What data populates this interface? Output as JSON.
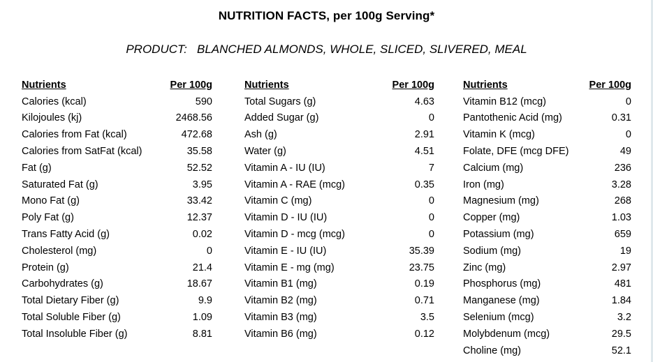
{
  "title": "NUTRITION FACTS, per 100g Serving*",
  "product_label": "PRODUCT:",
  "product_name": "BLANCHED ALMONDS, WHOLE, SLICED, SLIVERED, MEAL",
  "header": {
    "nutrients": "Nutrients",
    "per": "Per 100g"
  },
  "columns": [
    {
      "rows": [
        [
          "Calories (kcal)",
          "590"
        ],
        [
          "Kilojoules (kj)",
          "2468.56"
        ],
        [
          "Calories from Fat (kcal)",
          "472.68"
        ],
        [
          "Calories from SatFat (kcal)",
          "35.58"
        ],
        [
          "Fat (g)",
          "52.52"
        ],
        [
          "Saturated Fat (g)",
          "3.95"
        ],
        [
          "Mono Fat (g)",
          "33.42"
        ],
        [
          "Poly Fat (g)",
          "12.37"
        ],
        [
          "Trans Fatty Acid (g)",
          "0.02"
        ],
        [
          "Cholesterol (mg)",
          "0"
        ],
        [
          "Protein (g)",
          "21.4"
        ],
        [
          "Carbohydrates (g)",
          "18.67"
        ],
        [
          "Total Dietary Fiber (g)",
          "9.9"
        ],
        [
          "Total Soluble Fiber (g)",
          "1.09"
        ],
        [
          "Total Insoluble Fiber (g)",
          "8.81"
        ]
      ]
    },
    {
      "rows": [
        [
          "Total Sugars (g)",
          "4.63"
        ],
        [
          "Added Sugar (g)",
          "0"
        ],
        [
          "Ash (g)",
          "2.91"
        ],
        [
          "Water (g)",
          "4.51"
        ],
        [
          "Vitamin A - IU (IU)",
          "7"
        ],
        [
          "Vitamin A - RAE (mcg)",
          "0.35"
        ],
        [
          "Vitamin C (mg)",
          "0"
        ],
        [
          "Vitamin D - IU (IU)",
          "0"
        ],
        [
          "Vitamin D - mcg (mcg)",
          "0"
        ],
        [
          "Vitamin E - IU (IU)",
          "35.39"
        ],
        [
          "Vitamin E - mg (mg)",
          "23.75"
        ],
        [
          "Vitamin B1 (mg)",
          "0.19"
        ],
        [
          "Vitamin B2 (mg)",
          "0.71"
        ],
        [
          "Vitamin B3 (mg)",
          "3.5"
        ],
        [
          "Vitamin B6 (mg)",
          "0.12"
        ]
      ]
    },
    {
      "rows": [
        [
          "Vitamin B12 (mcg)",
          "0"
        ],
        [
          "Pantothenic Acid (mg)",
          "0.31"
        ],
        [
          "Vitamin K (mcg)",
          "0"
        ],
        [
          "Folate, DFE (mcg DFE)",
          "49"
        ],
        [
          "Calcium (mg)",
          "236"
        ],
        [
          "Iron (mg)",
          "3.28"
        ],
        [
          "Magnesium (mg)",
          "268"
        ],
        [
          "Copper (mg)",
          "1.03"
        ],
        [
          "Potassium (mg)",
          "659"
        ],
        [
          "Sodium (mg)",
          "19"
        ],
        [
          "Zinc (mg)",
          "2.97"
        ],
        [
          "Phosphorus (mg)",
          "481"
        ],
        [
          "Manganese (mg)",
          "1.84"
        ],
        [
          "Selenium (mcg)",
          "3.2"
        ],
        [
          "Molybdenum (mcg)",
          "29.5"
        ],
        [
          "Choline (mg)",
          "52.1"
        ]
      ]
    }
  ]
}
